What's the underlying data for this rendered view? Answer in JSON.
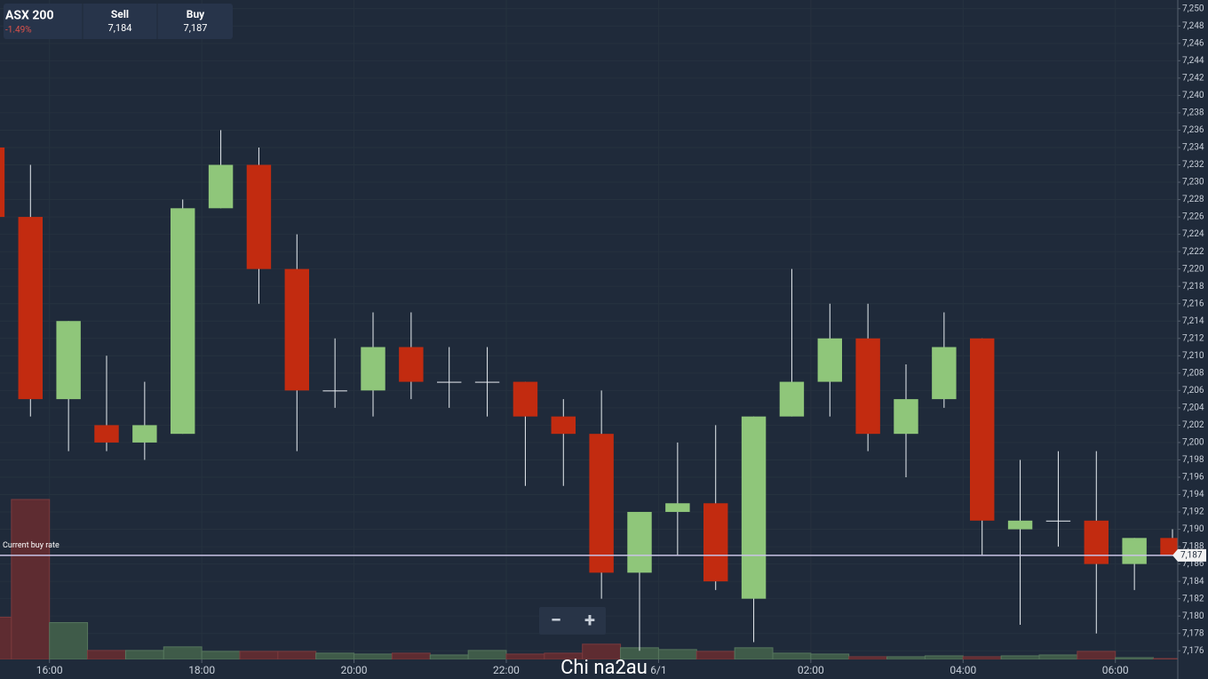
{
  "header": {
    "title": "ASX 200",
    "change": "-1.49%",
    "sell_label": "Sell",
    "sell": "7,184",
    "buy_label": "Buy",
    "buy": "7,187"
  },
  "zoom": {
    "minus": "−",
    "plus": "+"
  },
  "watermark": "Chi na2au",
  "chart_data": {
    "type": "candlestick",
    "x": [
      15.25,
      15.75,
      16.25,
      16.75,
      17.25,
      17.75,
      18.25,
      18.75,
      19.25,
      19.75,
      20.25,
      20.75,
      21.25,
      21.75,
      22.25,
      22.75,
      23.25,
      23.75,
      24.25,
      24.75,
      25.25,
      25.75,
      26.25,
      26.75,
      27.25,
      27.75,
      28.25,
      28.75,
      29.25,
      29.75,
      30.25,
      30.75
    ],
    "open": [
      7234,
      7226,
      7205,
      7202,
      7200,
      7201,
      7227,
      7232,
      7220,
      7206,
      7206,
      7211,
      7207,
      7207,
      7207,
      7203,
      7201,
      7185,
      7192,
      7193,
      7182,
      7203,
      7207,
      7212,
      7201,
      7205,
      7212,
      7190,
      7191,
      7191,
      7186,
      7189
    ],
    "high": [
      7234,
      7232,
      7214,
      7210,
      7207,
      7228,
      7236,
      7234,
      7224,
      7212,
      7215,
      7215,
      7211,
      7211,
      7207,
      7205,
      7206,
      7192,
      7200,
      7202,
      7203,
      7220,
      7216,
      7216,
      7209,
      7215,
      7212,
      7198,
      7199,
      7199,
      7189,
      7190
    ],
    "low": [
      7226,
      7203,
      7199,
      7199,
      7198,
      7201,
      7227,
      7216,
      7199,
      7204,
      7203,
      7205,
      7204,
      7203,
      7195,
      7195,
      7182,
      7176,
      7187,
      7183,
      7177,
      7203,
      7203,
      7199,
      7196,
      7204,
      7187,
      7179,
      7188,
      7178,
      7183,
      7187
    ],
    "close": [
      7226,
      7205,
      7214,
      7200,
      7202,
      7227,
      7232,
      7220,
      7206,
      7206,
      7211,
      7207,
      7207,
      7207,
      7203,
      7201,
      7185,
      7192,
      7193,
      7184,
      7203,
      7207,
      7212,
      7201,
      7205,
      7211,
      7191,
      7191,
      7191,
      7186,
      7189,
      7187
    ],
    "volume": [
      47,
      178,
      41,
      10,
      10,
      14,
      9,
      9,
      9,
      7,
      6,
      7,
      5,
      10,
      6,
      7,
      17,
      13,
      11,
      9,
      13,
      7,
      6,
      3,
      3,
      4,
      3,
      4,
      5,
      9,
      2,
      1
    ],
    "up_color": "#8fc67a",
    "down_color": "#c22b10",
    "volume_up_color": "#3f5b49",
    "volume_down_color": "#5e2c31",
    "xlim": [
      15.35,
      30.82
    ],
    "xticks": [
      {
        "value": 16,
        "label": "16:00"
      },
      {
        "value": 18,
        "label": "18:00"
      },
      {
        "value": 20,
        "label": "20:00"
      },
      {
        "value": 22,
        "label": "22:00"
      },
      {
        "value": 24,
        "label": "6/1"
      },
      {
        "value": 26,
        "label": "02:00"
      },
      {
        "value": 28,
        "label": "04:00"
      },
      {
        "value": 30,
        "label": "06:00"
      }
    ],
    "ylim": [
      7175,
      7251
    ],
    "yticks": [
      {
        "value": 7176,
        "label": "7,176"
      },
      {
        "value": 7178,
        "label": "7,178"
      },
      {
        "value": 7180,
        "label": "7,180"
      },
      {
        "value": 7182,
        "label": "7,182"
      },
      {
        "value": 7184,
        "label": "7,184"
      },
      {
        "value": 7186,
        "label": "7,186"
      },
      {
        "value": 7188,
        "label": "7,188"
      },
      {
        "value": 7190,
        "label": "7,190"
      },
      {
        "value": 7192,
        "label": "7,192"
      },
      {
        "value": 7194,
        "label": "7,194"
      },
      {
        "value": 7196,
        "label": "7,196"
      },
      {
        "value": 7198,
        "label": "7,198"
      },
      {
        "value": 7200,
        "label": "7,200"
      },
      {
        "value": 7202,
        "label": "7,202"
      },
      {
        "value": 7204,
        "label": "7,204"
      },
      {
        "value": 7206,
        "label": "7,206"
      },
      {
        "value": 7208,
        "label": "7,208"
      },
      {
        "value": 7210,
        "label": "7,210"
      },
      {
        "value": 7212,
        "label": "7,212"
      },
      {
        "value": 7214,
        "label": "7,214"
      },
      {
        "value": 7216,
        "label": "7,216"
      },
      {
        "value": 7218,
        "label": "7,218"
      },
      {
        "value": 7220,
        "label": "7,220"
      },
      {
        "value": 7222,
        "label": "7,222"
      },
      {
        "value": 7224,
        "label": "7,224"
      },
      {
        "value": 7226,
        "label": "7,226"
      },
      {
        "value": 7228,
        "label": "7,228"
      },
      {
        "value": 7230,
        "label": "7,230"
      },
      {
        "value": 7232,
        "label": "7,232"
      },
      {
        "value": 7234,
        "label": "7,234"
      },
      {
        "value": 7236,
        "label": "7,236"
      },
      {
        "value": 7238,
        "label": "7,238"
      },
      {
        "value": 7240,
        "label": "7,240"
      },
      {
        "value": 7242,
        "label": "7,242"
      },
      {
        "value": 7244,
        "label": "7,244"
      },
      {
        "value": 7246,
        "label": "7,246"
      },
      {
        "value": 7248,
        "label": "7,248"
      },
      {
        "value": 7250,
        "label": "7,250"
      }
    ],
    "grid": true,
    "current_rate": {
      "label": "Current buy rate",
      "value": 7187,
      "value_label": "7,187",
      "color": "#c9c3e6"
    }
  }
}
